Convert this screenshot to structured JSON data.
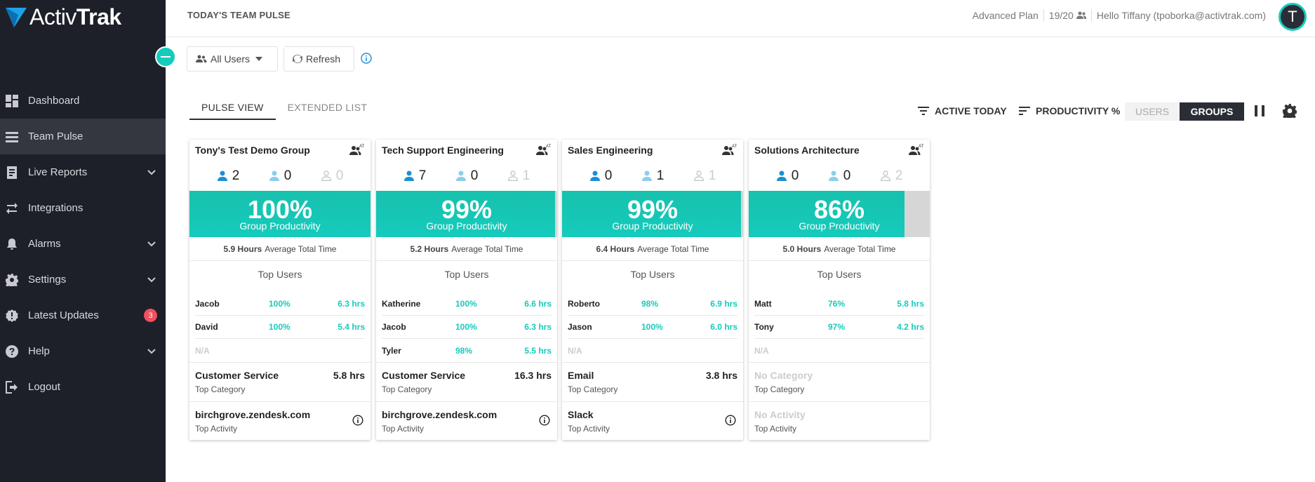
{
  "brand": {
    "name_light": "Activ",
    "name_bold": "Trak",
    "accent": "#16cbbd"
  },
  "sidebar": {
    "items": [
      {
        "label": "Dashboard",
        "icon": "dashboard-icon"
      },
      {
        "label": "Team Pulse",
        "icon": "team-pulse-icon",
        "active": true
      },
      {
        "label": "Live Reports",
        "icon": "reports-icon",
        "expandable": true
      },
      {
        "label": "Integrations",
        "icon": "integrations-icon"
      },
      {
        "label": "Alarms",
        "icon": "bell-icon",
        "expandable": true
      },
      {
        "label": "Settings",
        "icon": "gear-icon",
        "expandable": true
      },
      {
        "label": "Latest Updates",
        "icon": "updates-icon",
        "badge": "3"
      },
      {
        "label": "Help",
        "icon": "help-icon",
        "expandable": true
      },
      {
        "label": "Logout",
        "icon": "logout-icon"
      }
    ]
  },
  "header": {
    "title": "TODAY'S TEAM PULSE",
    "plan": "Advanced Plan",
    "seats": "19/20",
    "greeting": "Hello Tiffany (tpoborka@activtrak.com)",
    "avatar_initial": "T"
  },
  "toolbar": {
    "users_filter": "All Users",
    "refresh": "Refresh"
  },
  "tabs": [
    {
      "label": "PULSE VIEW",
      "active": true
    },
    {
      "label": "EXTENDED LIST"
    }
  ],
  "controls": {
    "filter": "ACTIVE TODAY",
    "sort": "PRODUCTIVITY %",
    "toggle_users": "USERS",
    "toggle_groups": "GROUPS"
  },
  "labels": {
    "group_productivity": "Group Productivity",
    "average_total_time": "Average Total Time",
    "top_users": "Top Users",
    "top_category": "Top Category",
    "top_activity": "Top Activity"
  },
  "cards": [
    {
      "name": "Tony's Test Demo Group",
      "counts": [
        "2",
        "0",
        "0"
      ],
      "productivity": "100%",
      "productivity_value": 100,
      "avg_hours": "5.9 Hours",
      "top_users": [
        {
          "name": "Jacob",
          "pct": "100%",
          "hrs": "6.3 hrs"
        },
        {
          "name": "David",
          "pct": "100%",
          "hrs": "5.4 hrs"
        },
        {
          "name": "N/A",
          "na": true
        }
      ],
      "category": "Customer Service",
      "category_hours": "5.8 hrs",
      "activity": "birchgrove.zendesk.com"
    },
    {
      "name": "Tech Support Engineering",
      "counts": [
        "7",
        "0",
        "1"
      ],
      "productivity": "99%",
      "productivity_value": 99,
      "avg_hours": "5.2 Hours",
      "top_users": [
        {
          "name": "Katherine",
          "pct": "100%",
          "hrs": "6.6 hrs"
        },
        {
          "name": "Jacob",
          "pct": "100%",
          "hrs": "6.3 hrs"
        },
        {
          "name": "Tyler",
          "pct": "98%",
          "hrs": "5.5 hrs"
        }
      ],
      "category": "Customer Service",
      "category_hours": "16.3 hrs",
      "activity": "birchgrove.zendesk.com"
    },
    {
      "name": "Sales Engineering",
      "counts": [
        "0",
        "1",
        "1"
      ],
      "productivity": "99%",
      "productivity_value": 99,
      "avg_hours": "6.4 Hours",
      "top_users": [
        {
          "name": "Roberto",
          "pct": "98%",
          "hrs": "6.9 hrs"
        },
        {
          "name": "Jason",
          "pct": "100%",
          "hrs": "6.0 hrs"
        },
        {
          "name": "N/A",
          "na": true
        }
      ],
      "category": "Email",
      "category_hours": "3.8 hrs",
      "activity": "Slack"
    },
    {
      "name": "Solutions Architecture",
      "counts": [
        "0",
        "0",
        "2"
      ],
      "productivity": "86%",
      "productivity_value": 86,
      "avg_hours": "5.0 Hours",
      "top_users": [
        {
          "name": "Matt",
          "pct": "76%",
          "hrs": "5.8 hrs"
        },
        {
          "name": "Tony",
          "pct": "97%",
          "hrs": "4.2 hrs"
        },
        {
          "name": "N/A",
          "na": true
        }
      ],
      "category": "No Category",
      "category_hours": "",
      "category_empty": true,
      "activity": "No Activity",
      "activity_empty": true
    }
  ]
}
